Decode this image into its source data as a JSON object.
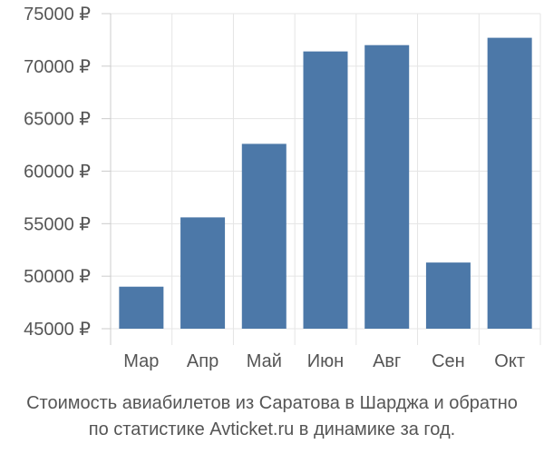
{
  "chart_data": {
    "type": "bar",
    "categories": [
      "Мар",
      "Апр",
      "Май",
      "Июн",
      "Авг",
      "Сен",
      "Окт"
    ],
    "values": [
      49000,
      55600,
      62600,
      71400,
      72000,
      51300,
      72700
    ],
    "ylim": [
      45000,
      75000
    ],
    "yticks": [
      45000,
      50000,
      55000,
      60000,
      65000,
      70000,
      75000
    ],
    "ytick_labels": [
      "45000 ₽",
      "50000 ₽",
      "55000 ₽",
      "60000 ₽",
      "65000 ₽",
      "70000 ₽",
      "75000 ₽"
    ],
    "grid": true,
    "bar_color": "#4c78a8",
    "grid_color": "#e5e5e5"
  },
  "caption": {
    "line1": "Стоимость авиабилетов из Саратова в Шарджа и обратно",
    "line2": "по статистике Avticket.ru в динамике за год."
  }
}
